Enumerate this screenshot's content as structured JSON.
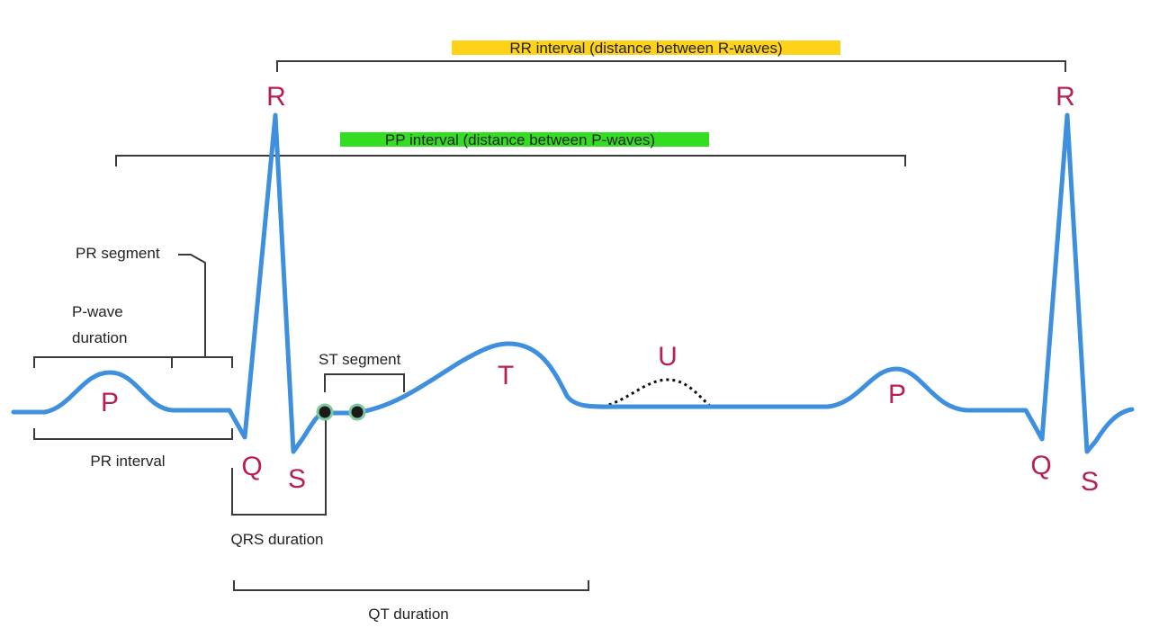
{
  "colors": {
    "waveform": "#3f8fdf",
    "wave_label": "#b5204f",
    "bracket": "#3a3a3a",
    "rr_highlight": "#ffd21a",
    "pp_highlight": "#33dd22"
  },
  "waves": {
    "p1": "P",
    "q1": "Q",
    "r1": "R",
    "s1": "S",
    "t": "T",
    "u": "U",
    "p2": "P",
    "q2": "Q",
    "r2": "R",
    "s2": "S"
  },
  "intervals": {
    "rr": "RR interval (distance between R-waves)",
    "pp": "PP interval (distance between P-waves)",
    "pr_segment": "PR segment",
    "p_wave_duration_line1": "P-wave",
    "p_wave_duration_line2": "duration",
    "pr_interval": "PR interval",
    "st_segment": "ST segment",
    "qrs_duration": "QRS duration",
    "qt_duration": "QT duration"
  }
}
